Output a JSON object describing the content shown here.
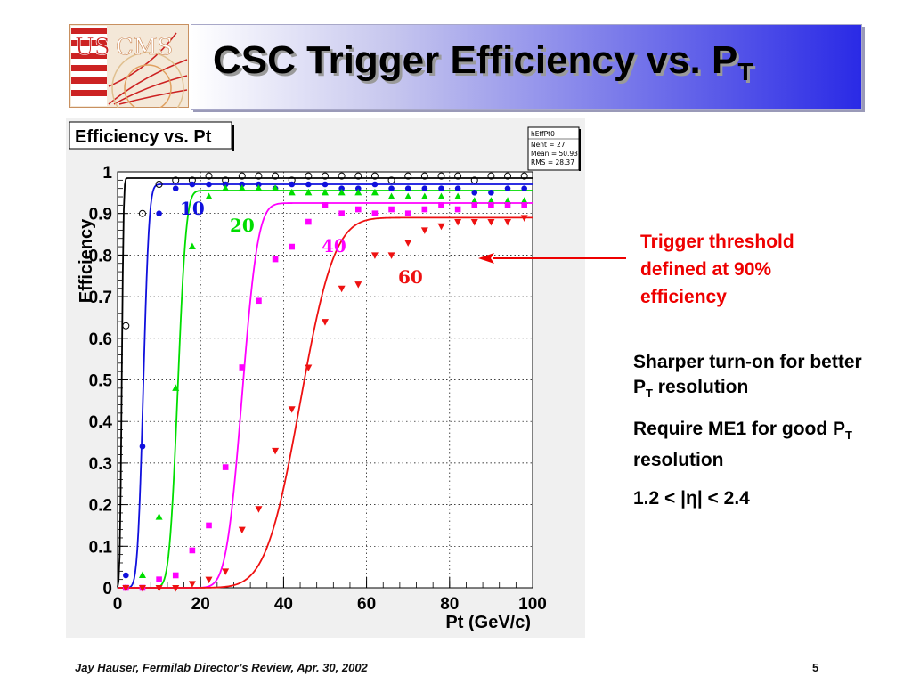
{
  "slide": {
    "title": "CSC Trigger Efficiency vs. P",
    "title_sub": "T",
    "logo_text_left": "US",
    "logo_text_right": "CMS",
    "annotation": "Trigger threshold defined at 90% efficiency",
    "bullets": [
      {
        "text": "Sharper turn-on for better P",
        "sub": "T",
        "tail": " resolution"
      },
      {
        "text": "Require ME1 for good P",
        "sub": "T",
        "tail": " resolution"
      },
      {
        "text": "1.2 < |η| < 2.4",
        "sub": "",
        "tail": ""
      }
    ],
    "footer_left": "Jay Hauser,   Fermilab Director’s Review, Apr. 30, 2002",
    "footer_right": "5"
  },
  "colors": {
    "black": "#000000",
    "blue": "#1010dd",
    "green": "#00dd00",
    "magenta": "#ff00ff",
    "red": "#ee1111",
    "annotation": "#ee0000"
  },
  "chart_data": {
    "type": "scatter",
    "title": "Efficiency vs. Pt",
    "xlabel": "Pt (GeV/c)",
    "ylabel": "Efficiency",
    "xlim": [
      0,
      100
    ],
    "ylim": [
      0,
      1
    ],
    "x_ticks": [
      0,
      20,
      40,
      60,
      80,
      100
    ],
    "y_ticks": [
      0,
      0.1,
      0.2,
      0.3,
      0.4,
      0.5,
      0.6,
      0.7,
      0.8,
      0.9,
      1
    ],
    "grid": true,
    "stats_box": {
      "name": "hEffPt0",
      "lines": [
        "Nent = 27",
        "Mean  =  50.93",
        "RMS   =  28.37"
      ]
    },
    "series": [
      {
        "name": "",
        "label": "",
        "color": "#000000",
        "marker": "open-circle",
        "x": [
          2,
          6,
          10,
          14,
          18,
          22,
          26,
          30,
          34,
          38,
          42,
          46,
          50,
          54,
          58,
          62,
          66,
          70,
          74,
          78,
          82,
          86,
          90,
          94,
          98
        ],
        "y": [
          0.63,
          0.9,
          0.97,
          0.98,
          0.98,
          0.99,
          0.98,
          0.99,
          0.99,
          0.99,
          0.98,
          0.99,
          0.99,
          0.99,
          0.99,
          0.99,
          0.98,
          0.99,
          0.99,
          0.99,
          0.99,
          0.98,
          0.99,
          0.99,
          0.99
        ],
        "fit": {
          "x0": 1.0,
          "width": 0.35,
          "plateau": 0.985
        }
      },
      {
        "name": "",
        "label": "10",
        "color": "#1010dd",
        "marker": "filled-circle",
        "x": [
          2,
          6,
          10,
          14,
          18,
          22,
          26,
          30,
          34,
          38,
          42,
          46,
          50,
          54,
          58,
          62,
          66,
          70,
          74,
          78,
          82,
          86,
          90,
          94,
          98
        ],
        "y": [
          0.03,
          0.34,
          0.9,
          0.96,
          0.97,
          0.97,
          0.97,
          0.97,
          0.97,
          0.96,
          0.97,
          0.97,
          0.97,
          0.96,
          0.96,
          0.97,
          0.96,
          0.96,
          0.96,
          0.96,
          0.96,
          0.95,
          0.95,
          0.96,
          0.96
        ],
        "fit": {
          "x0": 6.2,
          "width": 1.1,
          "plateau": 0.97
        }
      },
      {
        "name": "",
        "label": "20",
        "color": "#00dd00",
        "marker": "triangle-up",
        "x": [
          2,
          6,
          10,
          14,
          18,
          22,
          26,
          30,
          34,
          38,
          42,
          46,
          50,
          54,
          58,
          62,
          66,
          70,
          74,
          78,
          82,
          86,
          90,
          94,
          98
        ],
        "y": [
          0.0,
          0.03,
          0.17,
          0.48,
          0.82,
          0.94,
          0.96,
          0.96,
          0.96,
          0.96,
          0.95,
          0.95,
          0.95,
          0.95,
          0.95,
          0.95,
          0.94,
          0.94,
          0.94,
          0.94,
          0.94,
          0.93,
          0.93,
          0.93,
          0.93
        ],
        "fit": {
          "x0": 14.5,
          "width": 1.6,
          "plateau": 0.955
        }
      },
      {
        "name": "",
        "label": "40",
        "color": "#ff00ff",
        "marker": "filled-square",
        "x": [
          2,
          6,
          10,
          14,
          18,
          22,
          26,
          30,
          34,
          38,
          42,
          46,
          50,
          54,
          58,
          62,
          66,
          70,
          74,
          78,
          82,
          86,
          90,
          94,
          98
        ],
        "y": [
          0.0,
          0.0,
          0.02,
          0.03,
          0.09,
          0.15,
          0.29,
          0.53,
          0.69,
          0.79,
          0.82,
          0.88,
          0.92,
          0.9,
          0.91,
          0.9,
          0.91,
          0.9,
          0.91,
          0.92,
          0.91,
          0.92,
          0.92,
          0.92,
          0.92
        ],
        "fit": {
          "x0": 30.0,
          "width": 3.0,
          "plateau": 0.925
        }
      },
      {
        "name": "",
        "label": "60",
        "color": "#ee1111",
        "marker": "triangle-down",
        "x": [
          2,
          6,
          10,
          14,
          18,
          22,
          26,
          30,
          34,
          38,
          42,
          46,
          50,
          54,
          58,
          62,
          66,
          70,
          74,
          78,
          82,
          86,
          90,
          94,
          98
        ],
        "y": [
          0.0,
          0.0,
          0.0,
          0.0,
          0.01,
          0.02,
          0.04,
          0.14,
          0.19,
          0.33,
          0.43,
          0.53,
          0.64,
          0.72,
          0.73,
          0.8,
          0.8,
          0.83,
          0.86,
          0.87,
          0.88,
          0.88,
          0.88,
          0.88,
          0.89
        ],
        "fit": {
          "x0": 44.0,
          "width": 6.5,
          "plateau": 0.89
        }
      }
    ]
  }
}
